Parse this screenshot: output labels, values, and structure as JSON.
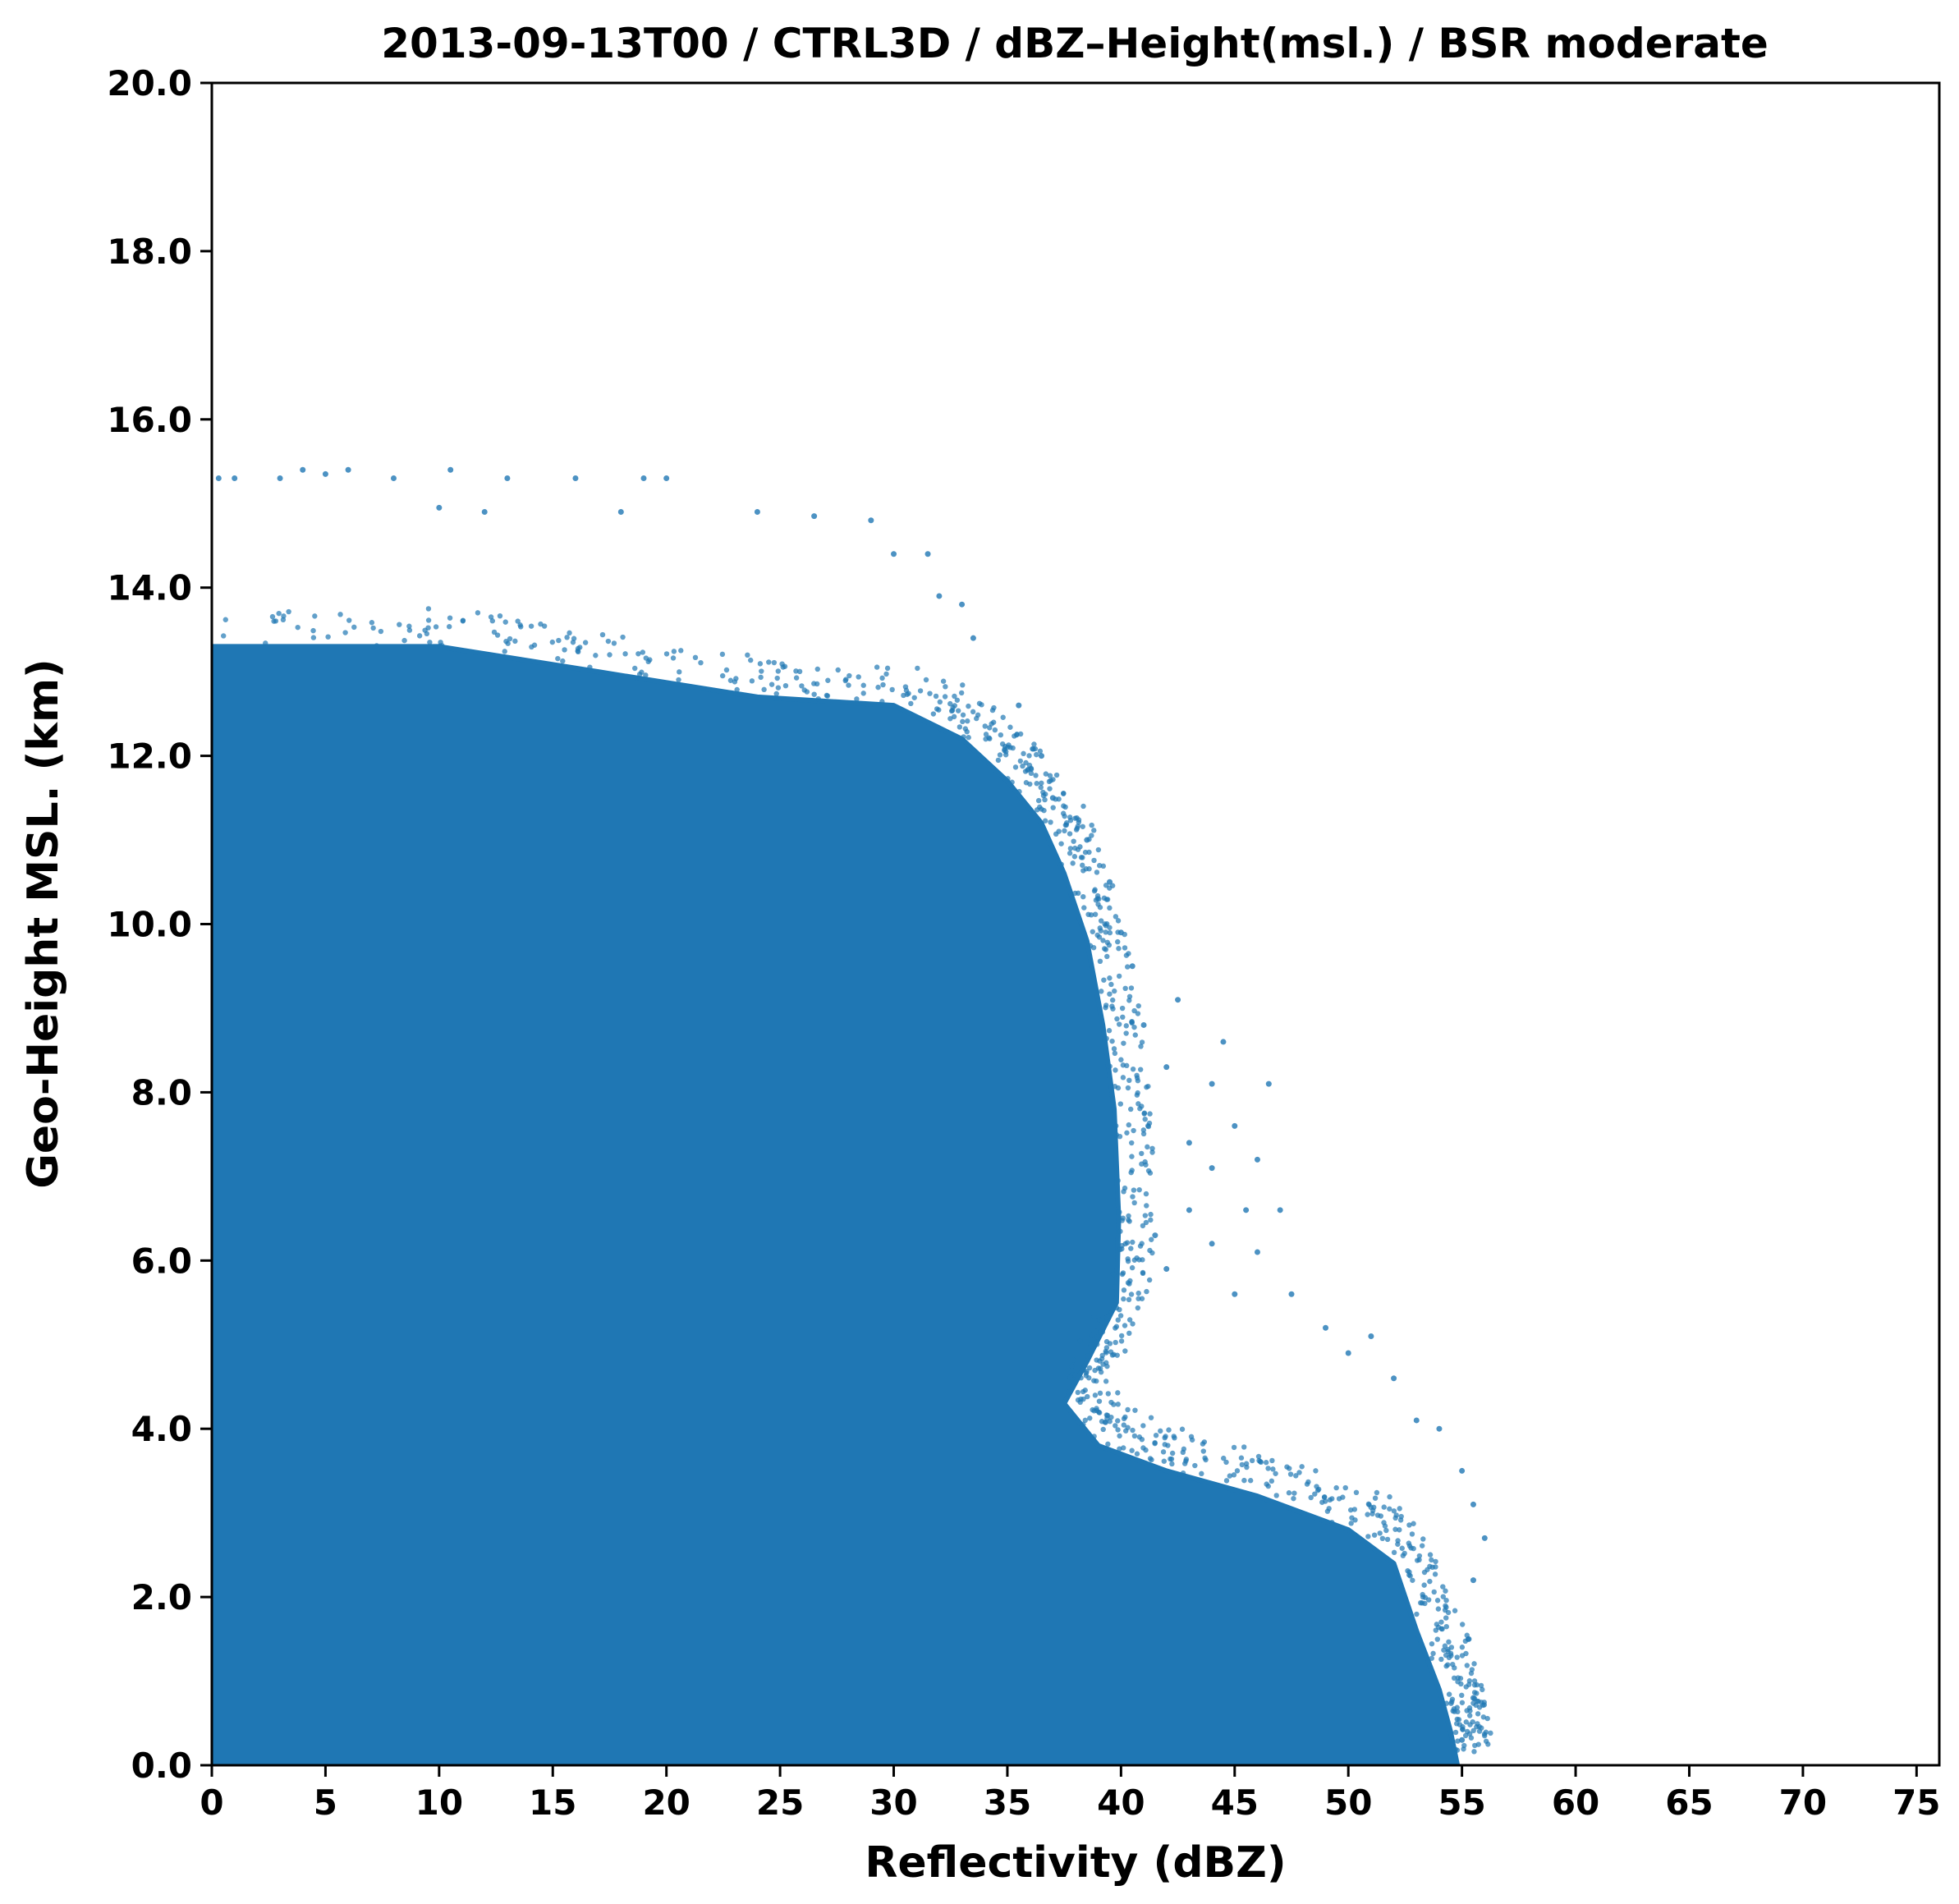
{
  "chart_data": {
    "type": "scatter",
    "title": "2013-09-13T00 / CTRL3D / dBZ–Height(msl.) / BSR moderate",
    "xlabel": "Reflectivity (dBZ)",
    "ylabel": "Geo-Height MSL. (km)",
    "xlim": [
      0,
      76
    ],
    "ylim": [
      0,
      20
    ],
    "x_ticks": [
      0,
      5,
      10,
      15,
      20,
      25,
      30,
      35,
      40,
      45,
      50,
      55,
      60,
      65,
      70,
      75
    ],
    "x_tick_labels": [
      "0",
      "5",
      "10",
      "15",
      "20",
      "25",
      "30",
      "35",
      "40",
      "45",
      "50",
      "55",
      "60",
      "65",
      "70",
      "75"
    ],
    "y_ticks": [
      0,
      2,
      4,
      6,
      8,
      10,
      12,
      14,
      16,
      18,
      20
    ],
    "y_tick_labels": [
      "0.0",
      "2.0",
      "4.0",
      "6.0",
      "8.0",
      "10.0",
      "12.0",
      "14.0",
      "16.0",
      "18.0",
      "20.0"
    ],
    "grid": false,
    "legend": "none",
    "marker_color": "#1f77b4",
    "dense_region_envelope": [
      [
        0,
        0
      ],
      [
        0,
        13.3
      ],
      [
        10,
        13.3
      ],
      [
        17,
        13.0
      ],
      [
        24,
        12.7
      ],
      [
        30,
        12.6
      ],
      [
        33,
        12.2
      ],
      [
        35,
        11.7
      ],
      [
        36.5,
        11.2
      ],
      [
        37.5,
        10.6
      ],
      [
        38.5,
        9.8
      ],
      [
        39.2,
        8.8
      ],
      [
        39.7,
        7.8
      ],
      [
        39.9,
        6.5
      ],
      [
        39.8,
        5.5
      ],
      [
        38.5,
        4.8
      ],
      [
        37.5,
        4.3
      ],
      [
        39,
        3.8
      ],
      [
        42,
        3.5
      ],
      [
        46,
        3.2
      ],
      [
        50,
        2.8
      ],
      [
        52,
        2.4
      ],
      [
        53,
        1.6
      ],
      [
        54,
        0.9
      ],
      [
        54.5,
        0.4
      ],
      [
        54.8,
        0
      ]
    ],
    "sparse_outliers": [
      [
        0.3,
        15.3
      ],
      [
        1,
        15.3
      ],
      [
        3,
        15.3
      ],
      [
        4,
        15.4
      ],
      [
        5,
        15.35
      ],
      [
        6,
        15.4
      ],
      [
        8,
        15.3
      ],
      [
        10.5,
        15.4
      ],
      [
        13,
        15.3
      ],
      [
        16,
        15.3
      ],
      [
        19,
        15.3
      ],
      [
        20,
        15.3
      ],
      [
        10,
        14.95
      ],
      [
        12,
        14.9
      ],
      [
        18,
        14.9
      ],
      [
        24,
        14.9
      ],
      [
        26.5,
        14.85
      ],
      [
        29,
        14.8
      ],
      [
        30,
        14.4
      ],
      [
        31.5,
        14.4
      ],
      [
        32,
        13.9
      ],
      [
        33,
        13.8
      ],
      [
        33.5,
        13.4
      ],
      [
        35.5,
        12.6
      ],
      [
        36.5,
        12.0
      ],
      [
        37,
        11.5
      ],
      [
        38.5,
        11.0
      ],
      [
        39.5,
        10.5
      ],
      [
        40,
        9.9
      ],
      [
        40.5,
        9.5
      ],
      [
        42.5,
        9.1
      ],
      [
        41,
        8.8
      ],
      [
        44.5,
        8.6
      ],
      [
        42,
        8.3
      ],
      [
        46.5,
        8.1
      ],
      [
        44,
        8.1
      ],
      [
        45,
        7.6
      ],
      [
        43,
        7.4
      ],
      [
        46,
        7.2
      ],
      [
        44,
        7.1
      ],
      [
        47,
        6.6
      ],
      [
        43,
        6.6
      ],
      [
        45.5,
        6.6
      ],
      [
        41.5,
        6.3
      ],
      [
        44,
        6.2
      ],
      [
        46,
        6.1
      ],
      [
        42,
        5.9
      ],
      [
        45,
        5.6
      ],
      [
        47.5,
        5.6
      ],
      [
        49,
        5.2
      ],
      [
        51,
        5.1
      ],
      [
        50,
        4.9
      ],
      [
        52,
        4.6
      ],
      [
        53,
        4.1
      ],
      [
        54,
        4.0
      ],
      [
        55,
        3.5
      ],
      [
        55.5,
        3.1
      ],
      [
        56,
        2.7
      ],
      [
        55.5,
        2.2
      ],
      [
        55.3,
        1.5
      ],
      [
        55.5,
        0.8
      ],
      [
        55,
        0.3
      ]
    ]
  }
}
